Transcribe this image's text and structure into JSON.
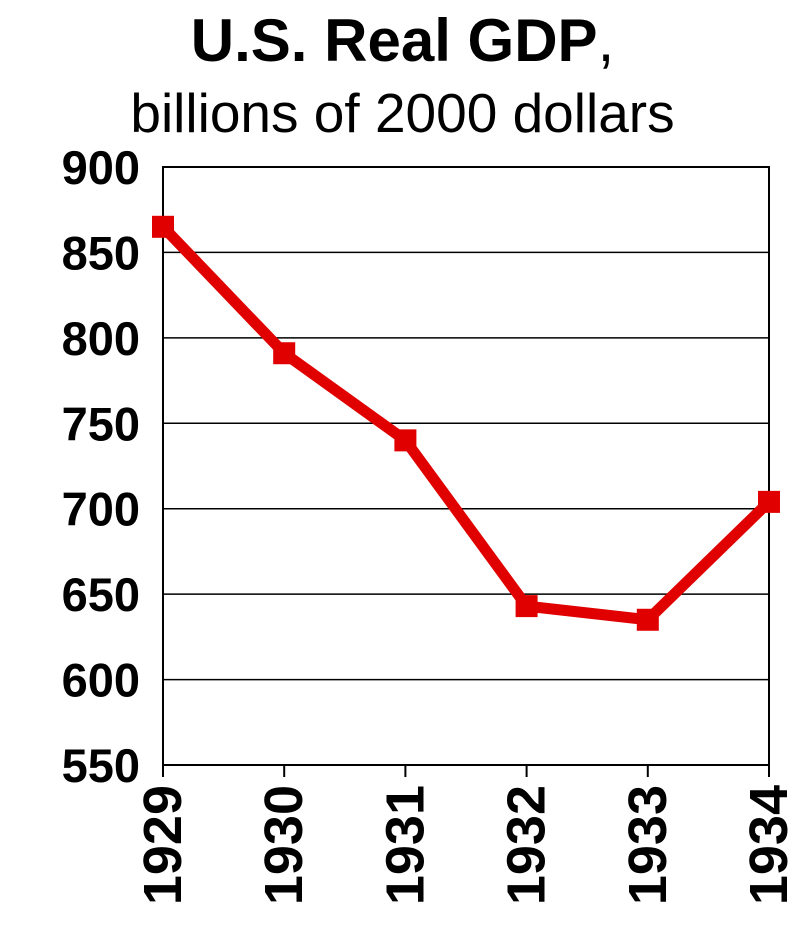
{
  "chart_data": {
    "type": "line",
    "title": "U.S. Real GDP",
    "title_suffix": ",",
    "subtitle": "billions of 2000 dollars",
    "x": [
      "1929",
      "1930",
      "1931",
      "1932",
      "1933",
      "1934"
    ],
    "series": [
      {
        "values": [
          865,
          791,
          740,
          643,
          635,
          704
        ]
      }
    ],
    "y_ticks": [
      550,
      600,
      650,
      700,
      750,
      800,
      850,
      900
    ],
    "ylim": [
      550,
      900
    ],
    "grid": true,
    "colors": {
      "line": "#e00000",
      "grid": "#000000"
    }
  }
}
